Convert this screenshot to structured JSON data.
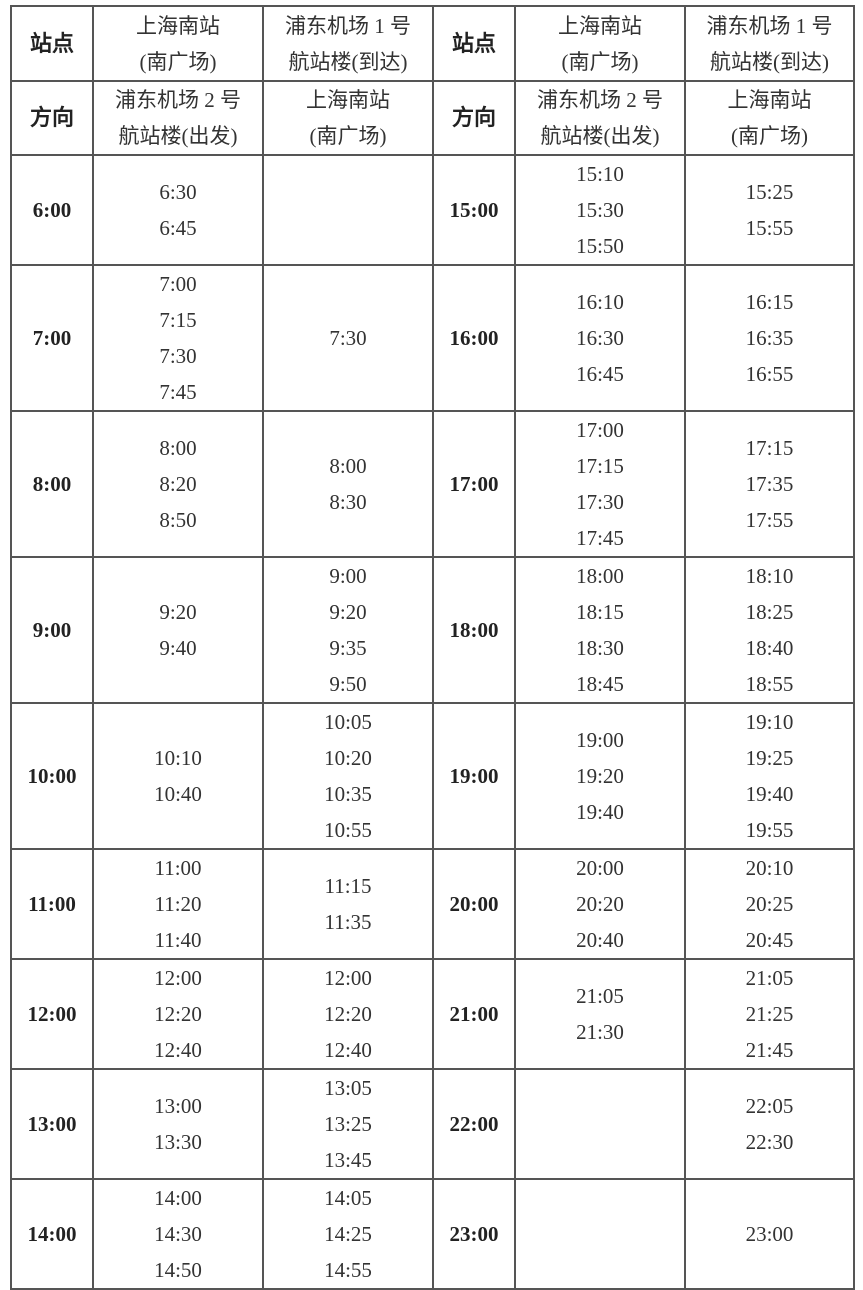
{
  "header": {
    "station_label": "站点",
    "direction_label": "方向",
    "left_station_a": [
      "上海南站",
      "(南广场)"
    ],
    "left_station_b": [
      "浦东机场 1 号",
      "航站楼(到达)"
    ],
    "left_direction_a": [
      "浦东机场 2 号",
      "航站楼(出发)"
    ],
    "left_direction_b": [
      "上海南站",
      "(南广场)"
    ],
    "right_station_a": [
      "上海南站",
      "(南广场)"
    ],
    "right_station_b": [
      "浦东机场 1 号",
      "航站楼(到达)"
    ],
    "right_direction_a": [
      "浦东机场 2 号",
      "航站楼(出发)"
    ],
    "right_direction_b": [
      "上海南站",
      "(南广场)"
    ]
  },
  "rows": [
    {
      "left": {
        "hour": "6:00",
        "a": [
          "6:30",
          "6:45"
        ],
        "b": []
      },
      "right": {
        "hour": "15:00",
        "a": [
          "15:10",
          "15:30",
          "15:50"
        ],
        "b": [
          "15:25",
          "15:55"
        ]
      }
    },
    {
      "left": {
        "hour": "7:00",
        "a": [
          "7:00",
          "7:15",
          "7:30",
          "7:45"
        ],
        "b": [
          "7:30"
        ]
      },
      "right": {
        "hour": "16:00",
        "a": [
          "16:10",
          "16:30",
          "16:45"
        ],
        "b": [
          "16:15",
          "16:35",
          "16:55"
        ]
      }
    },
    {
      "left": {
        "hour": "8:00",
        "a": [
          "8:00",
          "8:20",
          "8:50"
        ],
        "b": [
          "8:00",
          "8:30"
        ]
      },
      "right": {
        "hour": "17:00",
        "a": [
          "17:00",
          "17:15",
          "17:30",
          "17:45"
        ],
        "b": [
          "17:15",
          "17:35",
          "17:55"
        ]
      }
    },
    {
      "left": {
        "hour": "9:00",
        "a": [
          "9:20",
          "9:40"
        ],
        "b": [
          "9:00",
          "9:20",
          "9:35",
          "9:50"
        ]
      },
      "right": {
        "hour": "18:00",
        "a": [
          "18:00",
          "18:15",
          "18:30",
          "18:45"
        ],
        "b": [
          "18:10",
          "18:25",
          "18:40",
          "18:55"
        ]
      }
    },
    {
      "left": {
        "hour": "10:00",
        "a": [
          "10:10",
          "10:40"
        ],
        "b": [
          "10:05",
          "10:20",
          "10:35",
          "10:55"
        ]
      },
      "right": {
        "hour": "19:00",
        "a": [
          "19:00",
          "19:20",
          "19:40"
        ],
        "b": [
          "19:10",
          "19:25",
          "19:40",
          "19:55"
        ]
      }
    },
    {
      "left": {
        "hour": "11:00",
        "a": [
          "11:00",
          "11:20",
          "11:40"
        ],
        "b": [
          "11:15",
          "11:35"
        ]
      },
      "right": {
        "hour": "20:00",
        "a": [
          "20:00",
          "20:20",
          "20:40"
        ],
        "b": [
          "20:10",
          "20:25",
          "20:45"
        ]
      }
    },
    {
      "left": {
        "hour": "12:00",
        "a": [
          "12:00",
          "12:20",
          "12:40"
        ],
        "b": [
          "12:00",
          "12:20",
          "12:40"
        ]
      },
      "right": {
        "hour": "21:00",
        "a": [
          "21:05",
          "21:30"
        ],
        "b": [
          "21:05",
          "21:25",
          "21:45"
        ]
      }
    },
    {
      "left": {
        "hour": "13:00",
        "a": [
          "13:00",
          "13:30"
        ],
        "b": [
          "13:05",
          "13:25",
          "13:45"
        ]
      },
      "right": {
        "hour": "22:00",
        "a": [],
        "b": [
          "22:05",
          "22:30"
        ]
      }
    },
    {
      "left": {
        "hour": "14:00",
        "a": [
          "14:00",
          "14:30",
          "14:50"
        ],
        "b": [
          "14:05",
          "14:25",
          "14:55"
        ]
      },
      "right": {
        "hour": "23:00",
        "a": [],
        "b": [
          "23:00"
        ]
      }
    }
  ]
}
